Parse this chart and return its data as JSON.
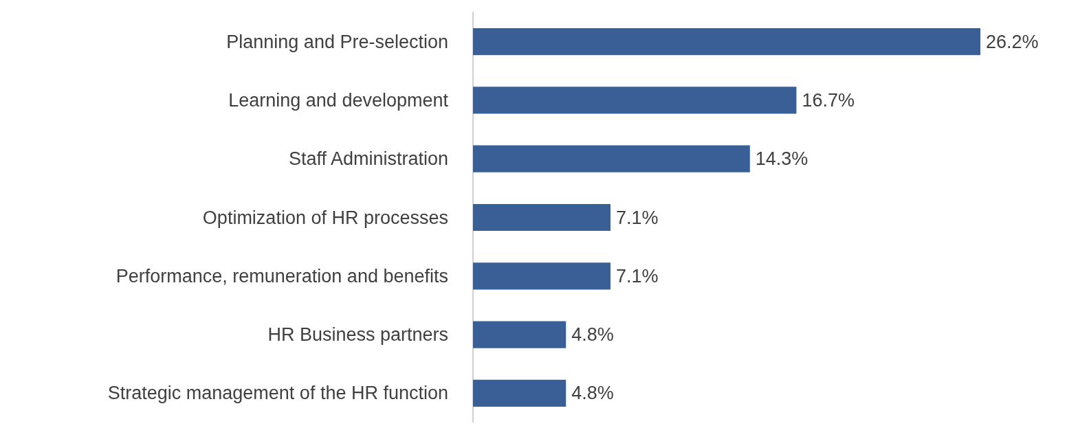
{
  "chart_data": {
    "type": "bar",
    "orientation": "horizontal",
    "categories": [
      "Planning and Pre-selection",
      "Learning and development",
      "Staff Administration",
      "Optimization of HR processes",
      "Performance, remuneration and benefits",
      "HR Business partners",
      "Strategic management of the HR function"
    ],
    "values": [
      26.2,
      16.7,
      14.3,
      7.1,
      7.1,
      4.8,
      4.8
    ],
    "value_labels": [
      "26.2%",
      "16.7%",
      "14.3%",
      "7.1%",
      "7.1%",
      "4.8%",
      "4.8%"
    ],
    "color": "#3a5f96"
  }
}
